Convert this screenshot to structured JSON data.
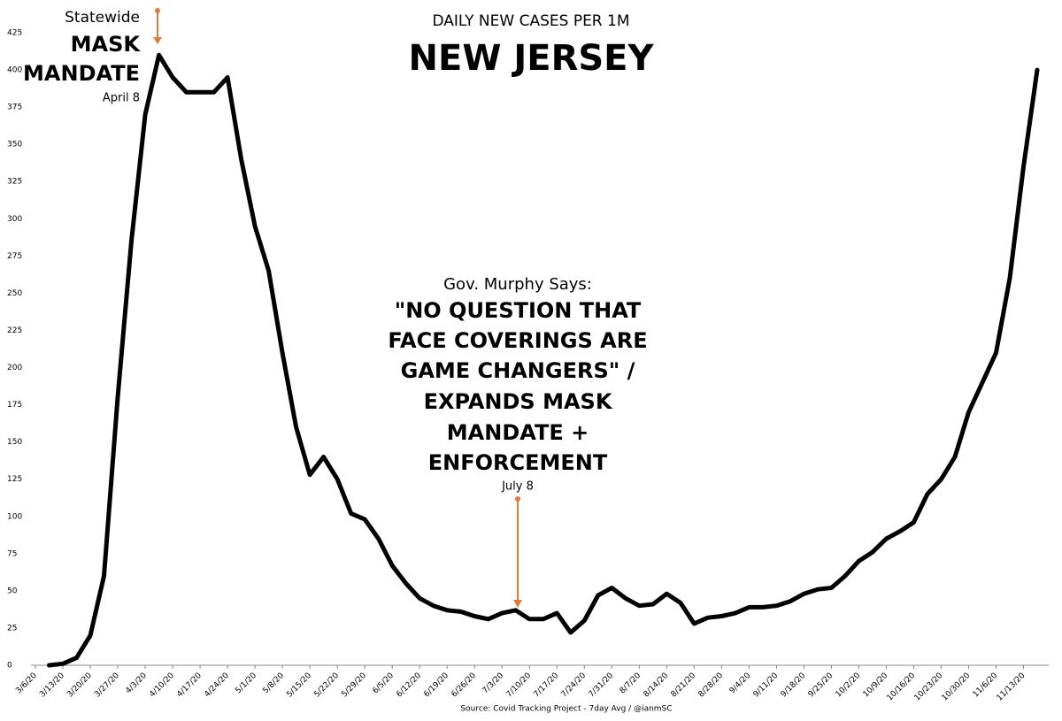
{
  "chart_data": {
    "type": "line",
    "title": "DAILY NEW CASES PER 1M",
    "subtitle": "NEW JERSEY",
    "source": "Source: Covid Tracking Project - 7day Avg / @ianmSC",
    "annotations": {
      "left": [
        "Statewide",
        "MASK",
        "MANDATE",
        "April 8"
      ],
      "center": [
        "Gov. Murphy Says:",
        "\"NO QUESTION THAT",
        "FACE COVERINGS ARE",
        "GAME CHANGERS\" /",
        "EXPANDS MASK",
        "MANDATE +",
        "ENFORCEMENT",
        "July 8"
      ]
    },
    "categories": [
      "3/6/20",
      null,
      "3/13/20",
      null,
      "3/20/20",
      null,
      "3/27/20",
      null,
      "4/3/20",
      null,
      "4/10/20",
      null,
      "4/17/20",
      null,
      "4/24/20",
      null,
      "5/1/20",
      null,
      "5/8/20",
      null,
      "5/15/20",
      null,
      "5/22/20",
      null,
      "5/29/20",
      null,
      "6/5/20",
      null,
      "6/12/20",
      null,
      "6/19/20",
      null,
      "6/26/20",
      null,
      "7/3/20",
      null,
      "7/10/20",
      null,
      "7/17/20",
      null,
      "7/24/20",
      null,
      "7/31/20",
      null,
      "8/7/20",
      null,
      "8/14/20",
      null,
      "8/21/20",
      null,
      "8/28/20",
      null,
      "9/4/20",
      null,
      "9/11/20",
      null,
      "9/18/20",
      null,
      "9/25/20",
      null,
      "10/2/20",
      null,
      "10/9/20",
      null,
      "10/16/20",
      null,
      "10/23/20",
      null,
      "10/30/20",
      null,
      "11/6/20",
      null,
      "11/13/20",
      null
    ],
    "series": [
      {
        "name": "Daily new cases per 1M",
        "color": "#000000",
        "values": [
          null,
          0,
          1,
          5,
          20,
          60,
          180,
          285,
          370,
          410,
          395,
          385,
          385,
          385,
          395,
          340,
          295,
          265,
          210,
          160,
          128,
          140,
          125,
          102,
          98,
          85,
          67,
          55,
          45,
          40,
          37,
          36,
          33,
          31,
          35,
          37,
          31,
          31,
          35,
          22,
          30,
          47,
          52,
          45,
          40,
          41,
          48,
          42,
          28,
          32,
          33,
          35,
          39,
          39,
          40,
          43,
          48,
          51,
          52,
          60,
          70,
          76,
          85,
          90,
          96,
          115,
          125,
          140,
          170,
          190,
          210,
          260,
          335,
          400
        ]
      }
    ],
    "ylim": [
      0,
      425
    ],
    "yticks": [
      0,
      25,
      50,
      75,
      100,
      125,
      150,
      175,
      200,
      225,
      250,
      275,
      300,
      325,
      350,
      375,
      400,
      425
    ],
    "grid": false,
    "legend": false
  }
}
